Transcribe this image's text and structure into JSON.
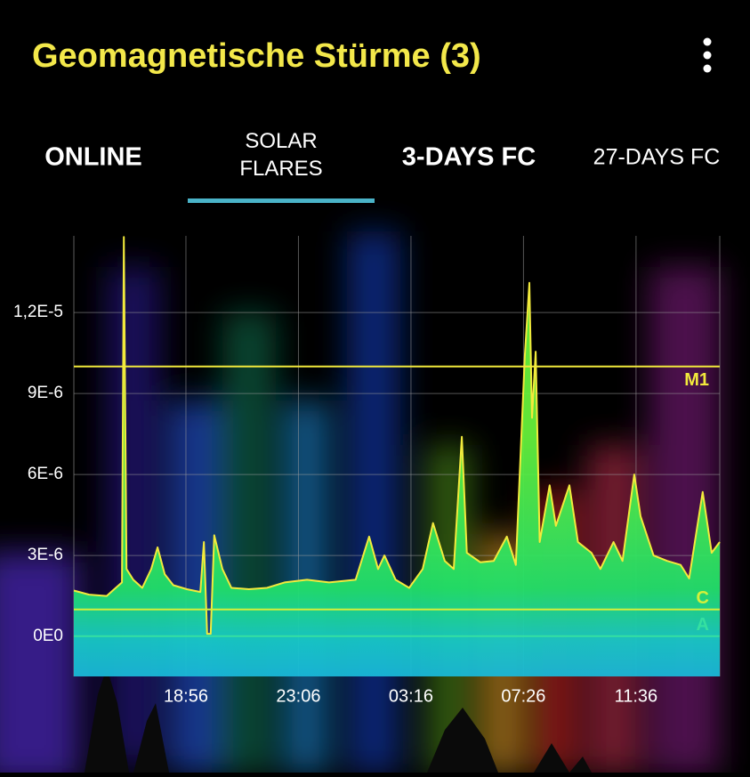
{
  "header": {
    "title": "Geomagnetische Stürme (3)"
  },
  "tabs": [
    "ONLINE",
    "SOLAR FLARES",
    "3-DAYS FC",
    "27-DAYS FC"
  ],
  "selected_tab": 1,
  "chart_data": {
    "type": "area",
    "color": "#f2ea3c",
    "x": [
      887,
      921,
      960,
      980,
      994,
      998,
      1004,
      1019,
      1039,
      1059,
      1073,
      1089,
      1108,
      1138,
      1168,
      1176,
      1183,
      1191,
      1199,
      1217,
      1237,
      1276,
      1316,
      1355,
      1405,
      1454,
      1513,
      1543,
      1563,
      1577,
      1602,
      1632,
      1662,
      1685,
      1711,
      1731,
      1749,
      1760,
      1790,
      1820,
      1849,
      1869,
      1889,
      1899,
      1905,
      1913,
      1922,
      1944,
      1958,
      1988,
      2007,
      2037,
      2057,
      2086,
      2106,
      2132,
      2146,
      2175,
      2205,
      2235,
      2254,
      2284,
      2304,
      2322
    ],
    "values": [
      1.7e-06,
      1.55e-06,
      1.5e-06,
      1.8e-06,
      2e-06,
      1.48e-05,
      2.5e-06,
      2.1e-06,
      1.8e-06,
      2.5e-06,
      3.3e-06,
      2.3e-06,
      1.9e-06,
      1.75e-06,
      1.65e-06,
      3.5e-06,
      1e-07,
      1e-07,
      3.75e-06,
      2.5e-06,
      1.8e-06,
      1.75e-06,
      1.8e-06,
      2e-06,
      2.1e-06,
      2e-06,
      2.1e-06,
      3.7e-06,
      2.5e-06,
      3e-06,
      2.1e-06,
      1.8e-06,
      2.5e-06,
      4.2e-06,
      2.8e-06,
      2.5e-06,
      7.4e-06,
      3.1e-06,
      2.75e-06,
      2.8e-06,
      3.7e-06,
      2.65e-06,
      1.04e-05,
      1.31e-05,
      8.1e-06,
      1.055e-05,
      3.5e-06,
      5.6e-06,
      4.1e-06,
      5.6e-06,
      3.5e-06,
      3.1e-06,
      2.5e-06,
      3.5e-06,
      2.8e-06,
      6e-06,
      4.45e-06,
      3e-06,
      2.8e-06,
      2.65e-06,
      2.15e-06,
      5.35e-06,
      3.1e-06,
      3.5e-06
    ],
    "xlim": [
      887,
      2322
    ],
    "xticks": [
      {
        "value": 1136,
        "label": "18:56"
      },
      {
        "value": 1386,
        "label": "23:06"
      },
      {
        "value": 1636,
        "label": "03:16"
      },
      {
        "value": 1886,
        "label": "07:26"
      },
      {
        "value": 2136,
        "label": "11:36"
      }
    ],
    "ylim": [
      -1.48e-06,
      1.484e-05
    ],
    "yticks": [
      {
        "value": 0,
        "label": "0E0"
      },
      {
        "value": 3e-06,
        "label": "3E-6"
      },
      {
        "value": 6e-06,
        "label": "6E-6"
      },
      {
        "value": 9e-06,
        "label": "9E-6"
      },
      {
        "value": 1.2e-05,
        "label": "1,2E-5"
      }
    ],
    "grid": true,
    "thresholds": [
      {
        "label": "M1",
        "value": 1e-05,
        "color": "#f2ea3c"
      },
      {
        "label": "C",
        "value": 1e-06,
        "color": "#d4f03a"
      },
      {
        "label": "A",
        "value": 1e-08,
        "color": "#35e0a0"
      }
    ]
  }
}
